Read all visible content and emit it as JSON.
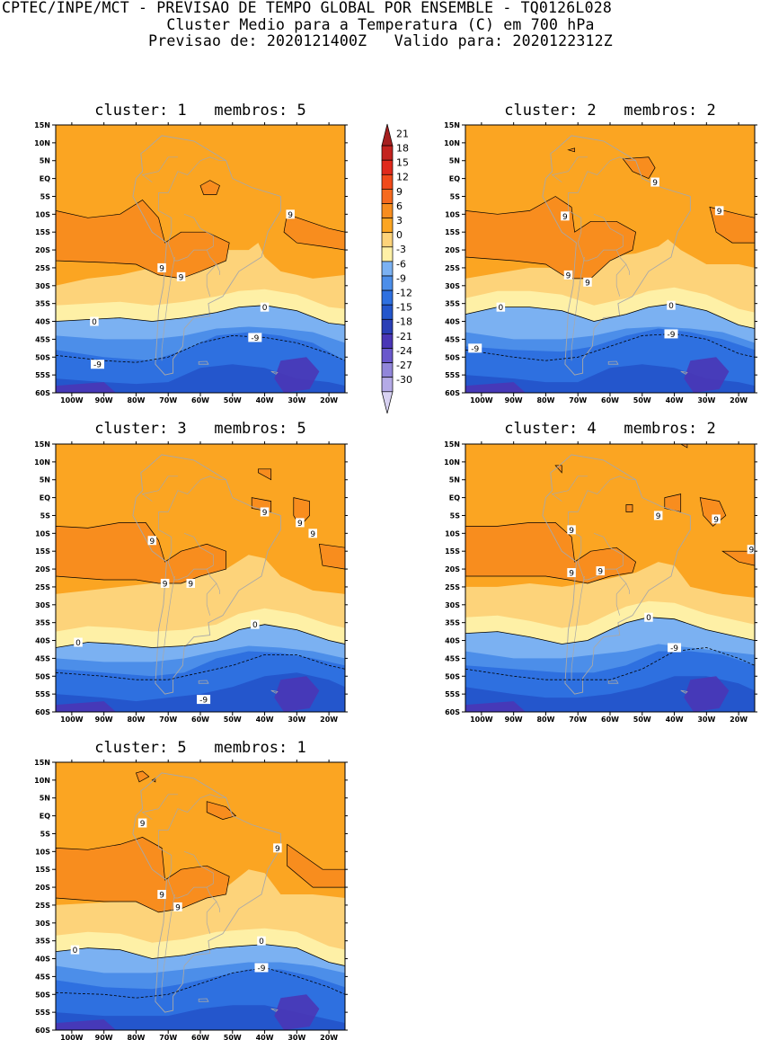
{
  "header": {
    "line1": "CPTEC/INPE/MCT - PREVISAO DE TEMPO GLOBAL POR ENSEMBLE - TQ0126L028",
    "line2": "Cluster Medio para a Temperatura (C) em 700 hPa",
    "line3": "Previsao de: 2020121400Z   Valido para: 2020122312Z"
  },
  "axes": {
    "lat_labels": [
      "15N",
      "10N",
      "5N",
      "EQ",
      "5S",
      "10S",
      "15S",
      "20S",
      "25S",
      "30S",
      "35S",
      "40S",
      "45S",
      "50S",
      "55S",
      "60S"
    ],
    "lon_labels": [
      "100W",
      "90W",
      "80W",
      "70W",
      "60W",
      "50W",
      "40W",
      "30W",
      "20W"
    ]
  },
  "colorbar": {
    "levels": [
      "21",
      "18",
      "15",
      "12",
      "9",
      "6",
      "3",
      "0",
      "-3",
      "-6",
      "-9",
      "-12",
      "-15",
      "-18",
      "-21",
      "-24",
      "-27",
      "-30"
    ],
    "colors": [
      "#a51f1f",
      "#c4231f",
      "#e02a1c",
      "#f14a1a",
      "#f66a1e",
      "#f88d1e",
      "#fba522",
      "#fdd37a",
      "#fef0a6",
      "#7bb1f2",
      "#4c8ee9",
      "#2e70e0",
      "#2456cc",
      "#2a3fb6",
      "#4a36b6",
      "#6a58cc",
      "#9186da",
      "#b4aae6",
      "#d8d2f2"
    ]
  },
  "contour_labels": {
    "nine": "9",
    "zero": "0",
    "minus_nine": "-9"
  },
  "panels": [
    {
      "title": "cluster: 1   membros: 5"
    },
    {
      "title": "cluster: 2   membros: 2"
    },
    {
      "title": "cluster: 3   membros: 5"
    },
    {
      "title": "cluster: 4   membros: 2"
    },
    {
      "title": "cluster: 5   membros: 1"
    }
  ]
}
